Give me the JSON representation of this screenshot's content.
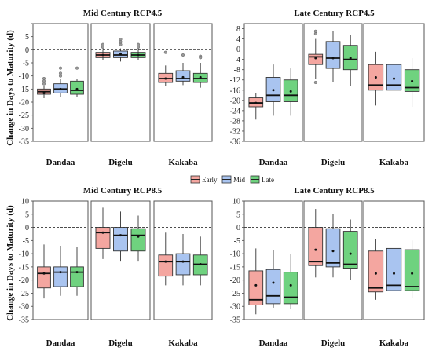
{
  "figure": {
    "ylabel": "Change in Days to Maturity (d)",
    "legend": [
      {
        "name": "Early",
        "color": "#F4A6A0"
      },
      {
        "name": "Mid",
        "color": "#A9C4F0"
      },
      {
        "name": "Late",
        "color": "#6FD27F"
      }
    ],
    "colors": {
      "Early": "#F4A6A0",
      "Mid": "#A9C4F0",
      "Late": "#6FD27F",
      "panel_border": "#555555",
      "zero_line": "#333333"
    }
  },
  "chart_data": [
    {
      "type": "boxplot",
      "title": "Mid Century RCP4.5",
      "ylim": [
        -35,
        10
      ],
      "yticks": [
        10,
        5,
        0,
        -5,
        -10,
        -15,
        -20,
        -25,
        -30,
        -35
      ],
      "ytick_labels": [
        "",
        "5",
        "0",
        "-5",
        "-10",
        "-15",
        "-20",
        "-25",
        "-30",
        "-35"
      ],
      "facets": [
        "Dandaa",
        "Digelu",
        "Kakaba"
      ],
      "series": [
        "Early",
        "Mid",
        "Late"
      ],
      "boxes": [
        [
          {
            "q1": -17,
            "med": -16,
            "q3": -15,
            "lo": -18.5,
            "hi": -14,
            "mean": -16.5,
            "outliers": [
              -13,
              -12,
              -11
            ]
          },
          {
            "q1": -16.5,
            "med": -15,
            "q3": -13,
            "lo": -18,
            "hi": -11,
            "mean": -15,
            "outliers": [
              -10,
              -9,
              -7
            ]
          },
          {
            "q1": -17,
            "med": -15.5,
            "q3": -12,
            "lo": -18,
            "hi": -11,
            "mean": -15,
            "outliers": [
              -7
            ]
          }
        ],
        [
          {
            "q1": -3,
            "med": -2,
            "q3": -1,
            "lo": -4,
            "hi": 0,
            "mean": -2,
            "outliers": [
              1,
              2
            ]
          },
          {
            "q1": -3,
            "med": -2,
            "q3": -0.5,
            "lo": -4.5,
            "hi": 0.5,
            "mean": -1.5,
            "outliers": [
              2,
              3,
              4
            ]
          },
          {
            "q1": -3,
            "med": -2,
            "q3": -1,
            "lo": -4,
            "hi": 0,
            "mean": -2,
            "outliers": [
              1,
              2
            ]
          }
        ],
        [
          {
            "q1": -12.5,
            "med": -11,
            "q3": -9,
            "lo": -14,
            "hi": -6,
            "mean": -11,
            "outliers": [
              -1
            ]
          },
          {
            "q1": -12,
            "med": -11,
            "q3": -8,
            "lo": -13.5,
            "hi": -5,
            "mean": -10.5,
            "outliers": [
              -2
            ]
          },
          {
            "q1": -12.5,
            "med": -11,
            "q3": -9,
            "lo": -14.5,
            "hi": -5,
            "mean": -10.5,
            "outliers": [
              -2.5,
              -3
            ]
          }
        ]
      ]
    },
    {
      "type": "boxplot",
      "title": "Late Century RCP4.5",
      "ylim": [
        -36,
        10
      ],
      "yticks": [
        8,
        4,
        0,
        -4,
        -8,
        -12,
        -16,
        -20,
        -24,
        -28,
        -32,
        -36
      ],
      "ytick_labels": [
        "8",
        "4",
        "0",
        "-4",
        "-8",
        "-12",
        "-16",
        "-20",
        "-24",
        "-28",
        "-32",
        "-36"
      ],
      "facets": [
        "Dandaa",
        "Digelu",
        "Kakaba"
      ],
      "series": [
        "Early",
        "Mid",
        "Late"
      ],
      "boxes": [
        [
          {
            "q1": -22.5,
            "med": -21,
            "q3": -19,
            "lo": -27.5,
            "hi": -17,
            "mean": -21,
            "outliers": []
          },
          {
            "q1": -20.5,
            "med": -18,
            "q3": -11,
            "lo": -26,
            "hi": -6,
            "mean": -16,
            "outliers": []
          },
          {
            "q1": -20.5,
            "med": -18,
            "q3": -12,
            "lo": -26,
            "hi": -7.5,
            "mean": -16.5,
            "outliers": []
          }
        ],
        [
          {
            "q1": -6,
            "med": -3,
            "q3": -2,
            "lo": -11.5,
            "hi": 4,
            "mean": -3.5,
            "outliers": [
              -13,
              6,
              7
            ]
          },
          {
            "q1": -7.5,
            "med": -3.5,
            "q3": 3,
            "lo": -13,
            "hi": 7,
            "mean": -3.5,
            "outliers": []
          },
          {
            "q1": -8,
            "med": -4,
            "q3": 1.5,
            "lo": -14.5,
            "hi": 5.5,
            "mean": -3.5,
            "outliers": []
          }
        ],
        [
          {
            "q1": -16,
            "med": -14,
            "q3": -6,
            "lo": -22,
            "hi": -1,
            "mean": -11,
            "outliers": []
          },
          {
            "q1": -16,
            "med": -14,
            "q3": -6,
            "lo": -21.5,
            "hi": -1.5,
            "mean": -11.5,
            "outliers": []
          },
          {
            "q1": -16.5,
            "med": -15,
            "q3": -8,
            "lo": -22.5,
            "hi": -3.5,
            "mean": -12.5,
            "outliers": []
          }
        ]
      ]
    },
    {
      "type": "boxplot",
      "title": "Mid Century RCP8.5",
      "ylim": [
        -35,
        10
      ],
      "yticks": [
        10,
        5,
        0,
        -5,
        -10,
        -15,
        -20,
        -25,
        -30,
        -35
      ],
      "ytick_labels": [
        "10",
        "5",
        "0",
        "-5",
        "-10",
        "-15",
        "-20",
        "-25",
        "-30",
        "-35"
      ],
      "facets": [
        "Dandaa",
        "Digelu",
        "Kakaba"
      ],
      "series": [
        "Early",
        "Mid",
        "Late"
      ],
      "boxes": [
        [
          {
            "q1": -23,
            "med": -17.5,
            "q3": -15,
            "lo": -27,
            "hi": -6.5,
            "mean": -17.5,
            "outliers": []
          },
          {
            "q1": -22.5,
            "med": -17,
            "q3": -15,
            "lo": -26,
            "hi": -7,
            "mean": -17,
            "outliers": []
          },
          {
            "q1": -22.5,
            "med": -17,
            "q3": -15,
            "lo": -26,
            "hi": -7.5,
            "mean": -17,
            "outliers": []
          }
        ],
        [
          {
            "q1": -8,
            "med": -2,
            "q3": 0,
            "lo": -12,
            "hi": 7.5,
            "mean": -2,
            "outliers": []
          },
          {
            "q1": -9,
            "med": -3,
            "q3": 0,
            "lo": -13,
            "hi": 6,
            "mean": -3,
            "outliers": []
          },
          {
            "q1": -9,
            "med": -3,
            "q3": -0.5,
            "lo": -13,
            "hi": 4.5,
            "mean": -3.5,
            "outliers": []
          }
        ],
        [
          {
            "q1": -18.5,
            "med": -13,
            "q3": -10.5,
            "lo": -22,
            "hi": -2,
            "mean": -13,
            "outliers": []
          },
          {
            "q1": -18,
            "med": -13,
            "q3": -10,
            "lo": -22,
            "hi": -2.5,
            "mean": -13,
            "outliers": []
          },
          {
            "q1": -18,
            "med": -14,
            "q3": -10.5,
            "lo": -22,
            "hi": -3.5,
            "mean": -14,
            "outliers": []
          }
        ]
      ]
    },
    {
      "type": "boxplot",
      "title": "Late Century RCP8.5",
      "ylim": [
        -35,
        10
      ],
      "yticks": [
        10,
        5,
        0,
        -5,
        -10,
        -15,
        -20,
        -25,
        -30,
        -35
      ],
      "ytick_labels": [
        "10",
        "5",
        "0",
        "-5",
        "-10",
        "-15",
        "-20",
        "-25",
        "-30",
        "-35"
      ],
      "facets": [
        "Dandaa",
        "Digelu",
        "Kakaba"
      ],
      "series": [
        "Early",
        "Mid",
        "Late"
      ],
      "boxes": [
        [
          {
            "q1": -29.5,
            "med": -27.5,
            "q3": -16.5,
            "lo": -33,
            "hi": -8,
            "mean": -22,
            "outliers": []
          },
          {
            "q1": -29,
            "med": -26,
            "q3": -16,
            "lo": -30.5,
            "hi": -8.5,
            "mean": -21,
            "outliers": []
          },
          {
            "q1": -29,
            "med": -26.5,
            "q3": -17,
            "lo": -31,
            "hi": -10,
            "mean": -22,
            "outliers": []
          }
        ],
        [
          {
            "q1": -14.5,
            "med": -13,
            "q3": 0,
            "lo": -19,
            "hi": 7,
            "mean": -8.5,
            "outliers": []
          },
          {
            "q1": -15,
            "med": -13.5,
            "q3": -0.5,
            "lo": -19,
            "hi": 5,
            "mean": -9,
            "outliers": []
          },
          {
            "q1": -15.5,
            "med": -14,
            "q3": -1.5,
            "lo": -20,
            "hi": 3,
            "mean": -10,
            "outliers": []
          }
        ],
        [
          {
            "q1": -24.5,
            "med": -23,
            "q3": -9,
            "lo": -27.5,
            "hi": -4.5,
            "mean": -17.5,
            "outliers": []
          },
          {
            "q1": -24,
            "med": -22,
            "q3": -8,
            "lo": -26.5,
            "hi": -4.5,
            "mean": -17.5,
            "outliers": []
          },
          {
            "q1": -24,
            "med": -22.5,
            "q3": -8.5,
            "lo": -27,
            "hi": -5,
            "mean": -17.5,
            "outliers": []
          }
        ]
      ]
    }
  ]
}
